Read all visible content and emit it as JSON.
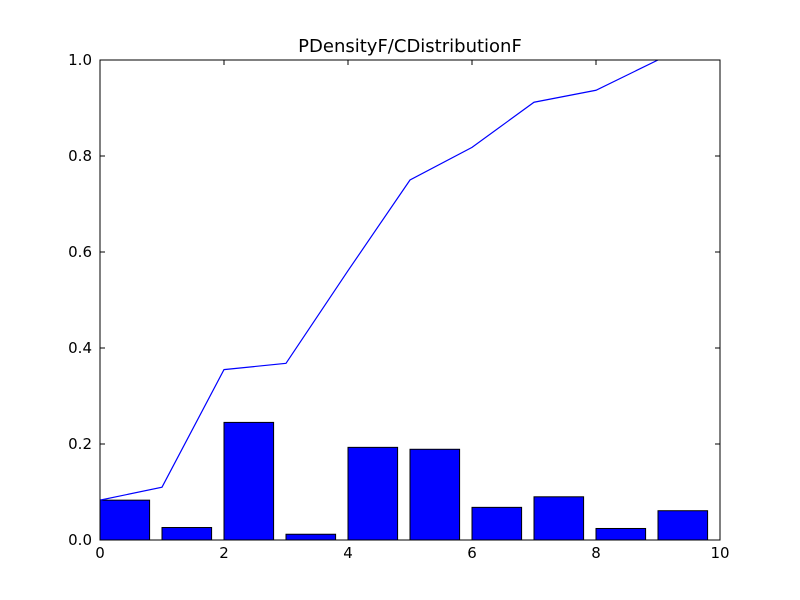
{
  "chart_data": {
    "type": "bar",
    "title": "PDensityF/CDistributionF",
    "xlabel": "",
    "ylabel": "",
    "xlim": [
      0,
      10
    ],
    "ylim": [
      0.0,
      1.0
    ],
    "bar_width": 0.8,
    "bars": {
      "x": [
        0,
        1,
        2,
        3,
        4,
        5,
        6,
        7,
        8,
        9
      ],
      "values": [
        0.083,
        0.026,
        0.245,
        0.012,
        0.193,
        0.189,
        0.068,
        0.09,
        0.024,
        0.061
      ],
      "color": "#0000ff"
    },
    "line": {
      "x": [
        0,
        1,
        2,
        3,
        4,
        5,
        6,
        7,
        8,
        9
      ],
      "values": [
        0.083,
        0.11,
        0.355,
        0.368,
        0.561,
        0.75,
        0.818,
        0.912,
        0.937,
        1.0
      ],
      "color": "#0000ff"
    },
    "x_ticks": [
      "0",
      "2",
      "4",
      "6",
      "8",
      "10"
    ],
    "y_ticks": [
      "0.0",
      "0.2",
      "0.4",
      "0.6",
      "0.8",
      "1.0"
    ],
    "grid": false
  }
}
